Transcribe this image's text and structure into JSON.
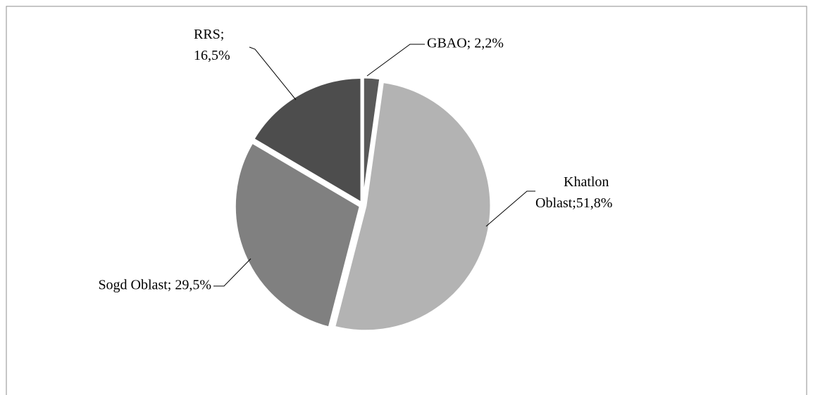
{
  "chart_data": {
    "type": "pie",
    "values": [
      2.2,
      51.8,
      29.5,
      16.5
    ],
    "value_labels": [
      "GBAO; 2,2%",
      "Khatlon Oblast;51,8%",
      "Sogd Oblast; 29,5%",
      "RRS; 16,5%"
    ],
    "colors": [
      "#595959",
      "#b3b3b3",
      "#808080",
      "#4d4d4d"
    ]
  }
}
